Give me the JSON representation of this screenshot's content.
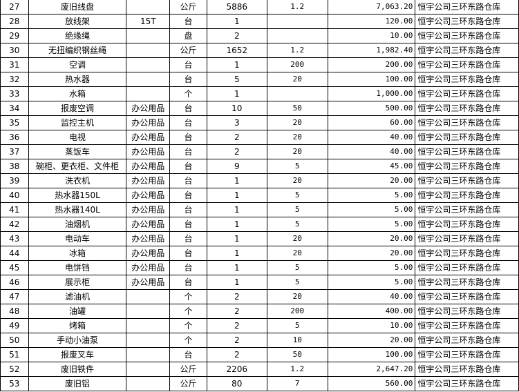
{
  "rows": [
    [
      "27",
      "废旧线盘",
      "",
      "公斤",
      "5886",
      "1.2",
      "7,063.20",
      "恒宇公司三环东路仓库"
    ],
    [
      "28",
      "放线架",
      "15T",
      "台",
      "1",
      "",
      "120.00",
      "恒宇公司三环东路仓库"
    ],
    [
      "29",
      "绝缘绳",
      "",
      "盘",
      "2",
      "",
      "10.00",
      "恒宇公司三环东路仓库"
    ],
    [
      "30",
      "无扭编织钢丝绳",
      "",
      "公斤",
      "1652",
      "1.2",
      "1,982.40",
      "恒宇公司三环东路仓库"
    ],
    [
      "31",
      "空调",
      "",
      "台",
      "1",
      "200",
      "200.00",
      "恒宇公司三环东路仓库"
    ],
    [
      "32",
      "热水器",
      "",
      "台",
      "5",
      "20",
      "100.00",
      "恒宇公司三环东路仓库"
    ],
    [
      "33",
      "水箱",
      "",
      "个",
      "1",
      "",
      "1,000.00",
      "恒宇公司三环东路仓库"
    ],
    [
      "34",
      "报废空调",
      "办公用品",
      "台",
      "10",
      "50",
      "500.00",
      "恒宇公司三环东路仓库"
    ],
    [
      "35",
      "监控主机",
      "办公用品",
      "台",
      "3",
      "20",
      "60.00",
      "恒宇公司三环东路仓库"
    ],
    [
      "36",
      "电视",
      "办公用品",
      "台",
      "2",
      "20",
      "40.00",
      "恒宇公司三环东路仓库"
    ],
    [
      "37",
      "蒸饭车",
      "办公用品",
      "台",
      "2",
      "20",
      "40.00",
      "恒宇公司三环东路仓库"
    ],
    [
      "38",
      "碗柜、更衣柜、文件柜",
      "办公用品",
      "台",
      "9",
      "5",
      "45.00",
      "恒宇公司三环东路仓库"
    ],
    [
      "39",
      "洗衣机",
      "办公用品",
      "台",
      "1",
      "20",
      "20.00",
      "恒宇公司三环东路仓库"
    ],
    [
      "40",
      "热水器150L",
      "办公用品",
      "台",
      "1",
      "5",
      "5.00",
      "恒宇公司三环东路仓库"
    ],
    [
      "41",
      "热水器140L",
      "办公用品",
      "台",
      "1",
      "5",
      "5.00",
      "恒宇公司三环东路仓库"
    ],
    [
      "42",
      "油烟机",
      "办公用品",
      "台",
      "1",
      "5",
      "5.00",
      "恒宇公司三环东路仓库"
    ],
    [
      "43",
      "电动车",
      "办公用品",
      "台",
      "1",
      "20",
      "20.00",
      "恒宇公司三环东路仓库"
    ],
    [
      "44",
      "冰箱",
      "办公用品",
      "台",
      "1",
      "20",
      "20.00",
      "恒宇公司三环东路仓库"
    ],
    [
      "45",
      "电饼铛",
      "办公用品",
      "台",
      "1",
      "5",
      "5.00",
      "恒宇公司三环东路仓库"
    ],
    [
      "46",
      "展示柜",
      "办公用品",
      "台",
      "1",
      "5",
      "5.00",
      "恒宇公司三环东路仓库"
    ],
    [
      "47",
      "滤油机",
      "",
      "个",
      "2",
      "20",
      "40.00",
      "恒宇公司三环东路仓库"
    ],
    [
      "48",
      "油罐",
      "",
      "个",
      "2",
      "200",
      "400.00",
      "恒宇公司三环东路仓库"
    ],
    [
      "49",
      "烤箱",
      "",
      "个",
      "2",
      "5",
      "10.00",
      "恒宇公司三环东路仓库"
    ],
    [
      "50",
      "手动小油泵",
      "",
      "个",
      "2",
      "10",
      "20.00",
      "恒宇公司三环东路仓库"
    ],
    [
      "51",
      "报废叉车",
      "",
      "台",
      "2",
      "50",
      "100.00",
      "恒宇公司三环东路仓库"
    ],
    [
      "52",
      "废旧铁件",
      "",
      "公斤",
      "2206",
      "1.2",
      "2,647.20",
      "恒宇公司三环东路仓库"
    ],
    [
      "53",
      "废旧铝",
      "",
      "公斤",
      "80",
      "7",
      "560.00",
      "恒宇公司三环东路仓库"
    ]
  ]
}
